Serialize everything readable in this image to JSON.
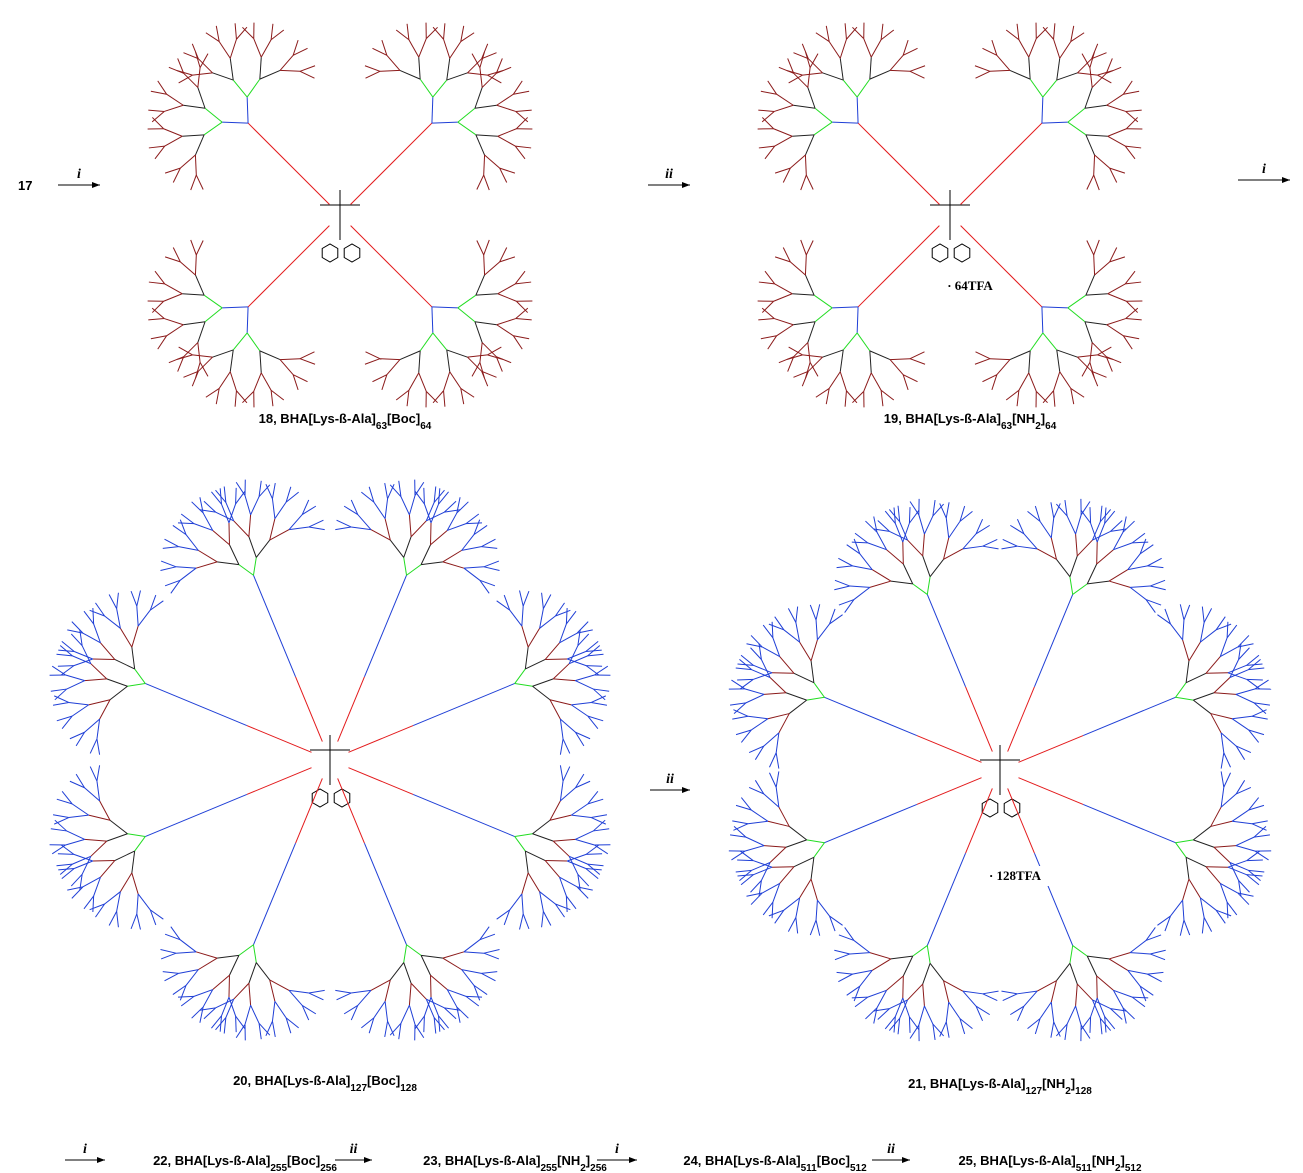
{
  "start": "17",
  "compounds": [
    {
      "label": [
        "18, BHA[Lys-ß-Ala]",
        "63",
        "[Boc]",
        "64"
      ]
    },
    {
      "label": [
        "19, BHA[Lys-ß-Ala]",
        "63",
        "[NH",
        "2",
        "]",
        "64"
      ],
      "salt": "· 64TFA"
    },
    {
      "label": [
        "20, BHA[Lys-ß-Ala]",
        "127",
        "[Boc]",
        "128"
      ]
    },
    {
      "label": [
        "21, BHA[Lys-ß-Ala]",
        "127",
        "[NH",
        "2",
        "]",
        "128"
      ],
      "salt": "· 128TFA"
    }
  ],
  "arrows": [
    "i",
    "ii",
    "i",
    "ii"
  ],
  "sequence": [
    {
      "arrow": "i",
      "label": [
        "22, BHA[Lys-ß-Ala]",
        "255",
        "[Boc]",
        "256"
      ]
    },
    {
      "arrow": "ii",
      "label": [
        "23, BHA[Lys-ß-Ala]",
        "255",
        "[NH",
        "2",
        "]",
        "256"
      ]
    },
    {
      "arrow": "i",
      "label": [
        "24, BHA[Lys-ß-Ala]",
        "511",
        "[Boc]",
        "512"
      ]
    },
    {
      "arrow": "ii",
      "label": [
        "25, BHA[Lys-ß-Ala]",
        "511",
        "[NH",
        "2",
        "]",
        "512"
      ]
    }
  ]
}
